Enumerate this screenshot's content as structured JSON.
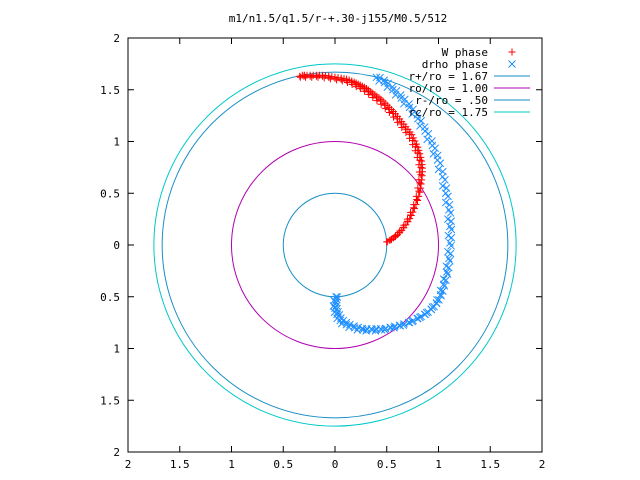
{
  "chart_data": {
    "type": "scatter",
    "title": "m1/n1.5/q1.5/r-+.30-j155/M0.5/512",
    "xlabel": "",
    "ylabel": "",
    "xlim": [
      -2,
      2
    ],
    "ylim": [
      -2,
      2
    ],
    "x_tick_values": [
      -2,
      -1.5,
      -1,
      -0.5,
      0,
      0.5,
      1,
      1.5,
      2
    ],
    "x_tick_labels": [
      "2",
      "1.5",
      "1",
      "0.5",
      "0",
      "0.5",
      "1",
      "1.5",
      "2"
    ],
    "y_tick_values": [
      2,
      1.5,
      1,
      0.5,
      0,
      -0.5,
      -1,
      -1.5,
      -2
    ],
    "y_tick_labels": [
      "2",
      "1.5",
      "1",
      "0.5",
      "0",
      "0.5",
      "1",
      "1.5",
      "2"
    ],
    "grid": false,
    "legend_position": "top-right",
    "series": [
      {
        "name": "W phase",
        "kind": "points",
        "marker": "plus",
        "color": "#ff0000",
        "x": [
          0.5,
          0.54,
          0.58,
          0.62,
          0.66,
          0.7,
          0.73,
          0.76,
          0.79,
          0.81,
          0.82,
          0.83,
          0.83,
          0.82,
          0.8,
          0.78,
          0.75,
          0.72,
          0.68,
          0.64,
          0.6,
          0.56,
          0.52,
          0.48,
          0.44,
          0.4,
          0.36,
          0.32,
          0.28,
          0.24,
          0.2,
          0.16,
          0.11,
          0.06,
          0.0,
          -0.06,
          -0.12,
          -0.18,
          -0.24,
          -0.3,
          -0.34
        ],
        "y": [
          0.03,
          0.05,
          0.08,
          0.12,
          0.17,
          0.23,
          0.29,
          0.36,
          0.44,
          0.52,
          0.6,
          0.68,
          0.75,
          0.82,
          0.89,
          0.95,
          1.01,
          1.07,
          1.12,
          1.17,
          1.22,
          1.27,
          1.31,
          1.35,
          1.39,
          1.42,
          1.45,
          1.48,
          1.51,
          1.53,
          1.55,
          1.57,
          1.59,
          1.6,
          1.61,
          1.62,
          1.63,
          1.63,
          1.63,
          1.63,
          1.63
        ]
      },
      {
        "name": "drho phase",
        "kind": "points",
        "marker": "cross",
        "color": "#1e8fff",
        "x": [
          0.4,
          0.48,
          0.56,
          0.64,
          0.72,
          0.8,
          0.87,
          0.94,
          0.99,
          1.04,
          1.07,
          1.1,
          1.11,
          1.11,
          1.1,
          1.08,
          1.05,
          1.02,
          0.98,
          0.93,
          0.87,
          0.8,
          0.72,
          0.63,
          0.54,
          0.45,
          0.36,
          0.27,
          0.19,
          0.11,
          0.05,
          0.02,
          0.0,
          0.0,
          0.01
        ],
        "y": [
          1.62,
          1.57,
          1.5,
          1.42,
          1.33,
          1.22,
          1.1,
          0.96,
          0.82,
          0.66,
          0.5,
          0.34,
          0.18,
          0.02,
          -0.13,
          -0.26,
          -0.38,
          -0.48,
          -0.56,
          -0.62,
          -0.67,
          -0.71,
          -0.75,
          -0.78,
          -0.8,
          -0.82,
          -0.82,
          -0.82,
          -0.8,
          -0.77,
          -0.73,
          -0.67,
          -0.61,
          -0.55,
          -0.5
        ]
      },
      {
        "name": "r+/ro = 1.67",
        "kind": "circle",
        "radius": 1.67,
        "color": "#1a8fc6"
      },
      {
        "name": "ro/ro = 1.00",
        "kind": "circle",
        "radius": 1.0,
        "color": "#b000b0"
      },
      {
        "name": "r-/ro = .50",
        "kind": "circle",
        "radius": 0.5,
        "color": "#1a8fc6"
      },
      {
        "name": "rc/ro = 1.75",
        "kind": "circle",
        "radius": 1.75,
        "color": "#00c8c8"
      }
    ]
  }
}
